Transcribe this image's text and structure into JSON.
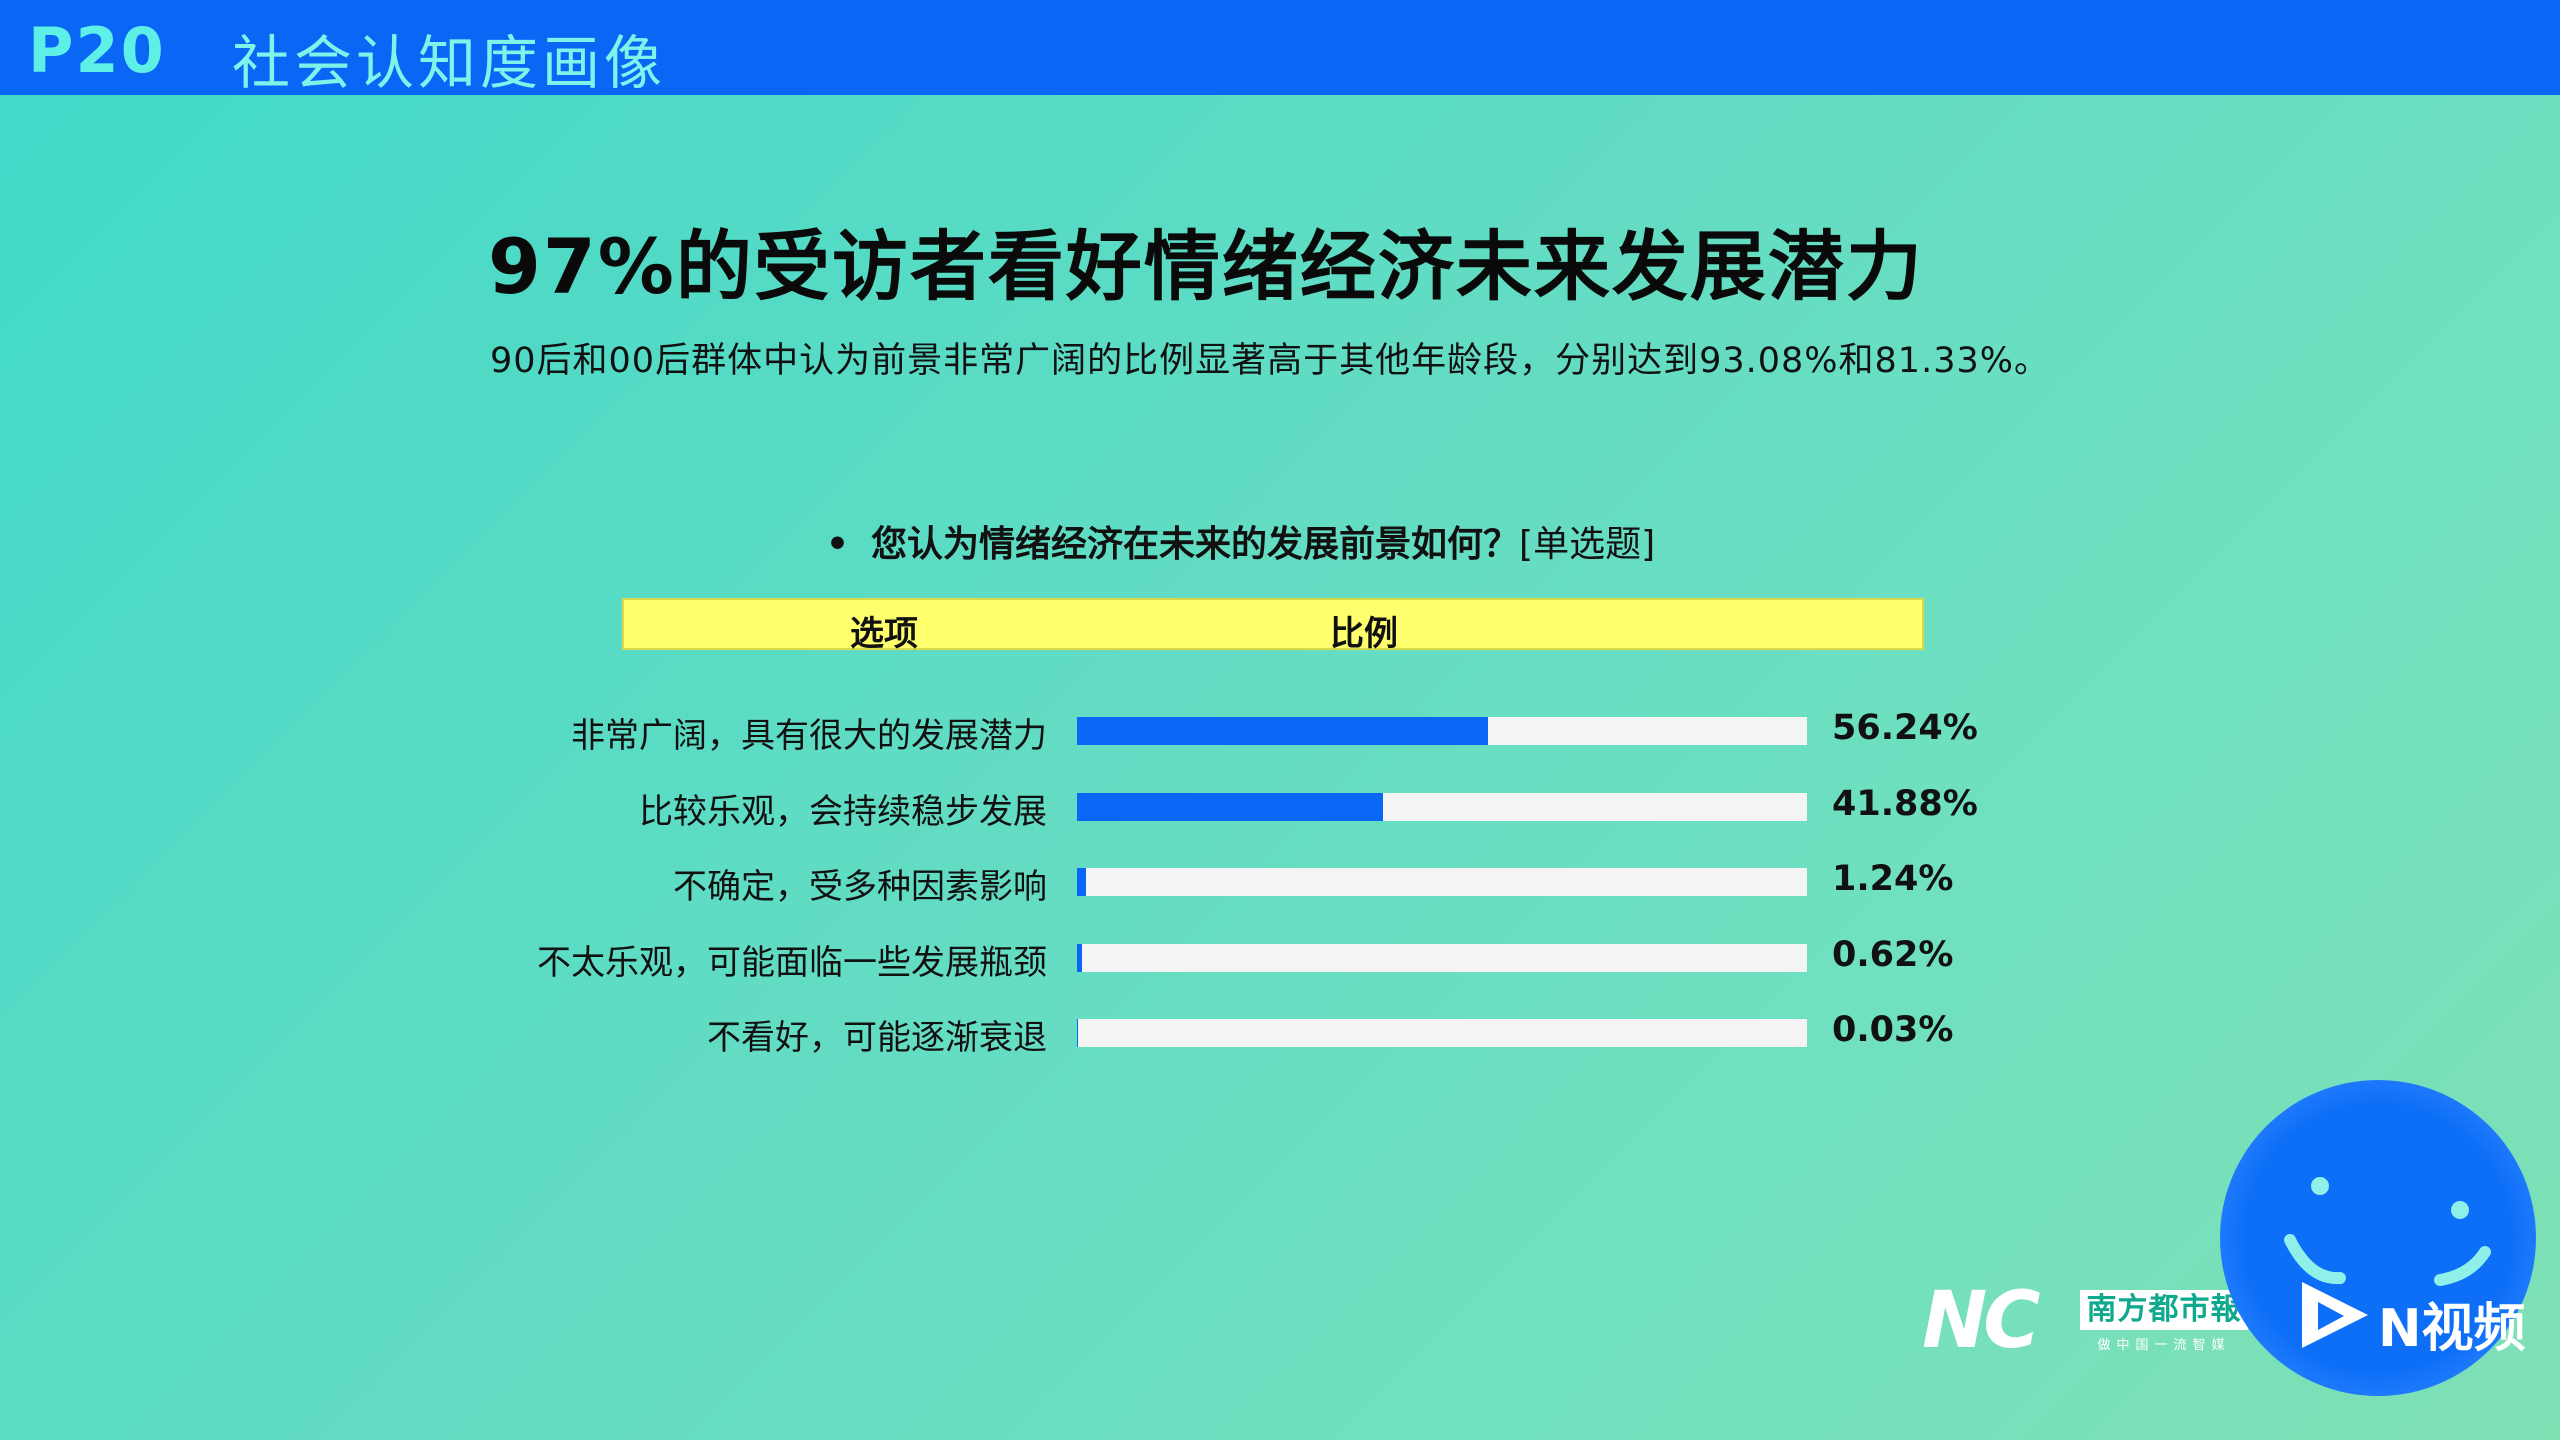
{
  "header": {
    "page_no": "P20",
    "section": "社会认知度画像"
  },
  "title": "97%的受访者看好情绪经济未来发展潜力",
  "subtitle": "90后和00后群体中认为前景非常广阔的比例显著高于其他年龄段，分别达到93.08%和81.33%。",
  "question": {
    "bullet": "•",
    "text": "您认为情绪经济在未来的发展前景如何？",
    "type": "[单选题]"
  },
  "table_header": {
    "option": "选项",
    "ratio": "比例"
  },
  "chart_data": {
    "type": "bar",
    "orientation": "horizontal",
    "categories": [
      "非常广阔，具有很大的发展潜力",
      "比较乐观，会持续稳步发展",
      "不确定，受多种因素影响",
      "不太乐观，可能面临一些发展瓶颈",
      "不看好，可能逐渐衰退"
    ],
    "values": [
      56.24,
      41.88,
      1.24,
      0.62,
      0.03
    ],
    "value_labels": [
      "56.24%",
      "41.88%",
      "1.24%",
      "0.62%",
      "0.03%"
    ],
    "xlim": [
      0,
      100
    ],
    "bar_color": "#0a66f5",
    "track_color": "#f4f4f4"
  },
  "logos": {
    "nc": "NC",
    "paper": "南方都市報",
    "paper_sub": "做中国一流智媒",
    "video": "N视频"
  },
  "colors": {
    "topbar": "#0a66f5",
    "header_bar": "#ffff6e"
  }
}
